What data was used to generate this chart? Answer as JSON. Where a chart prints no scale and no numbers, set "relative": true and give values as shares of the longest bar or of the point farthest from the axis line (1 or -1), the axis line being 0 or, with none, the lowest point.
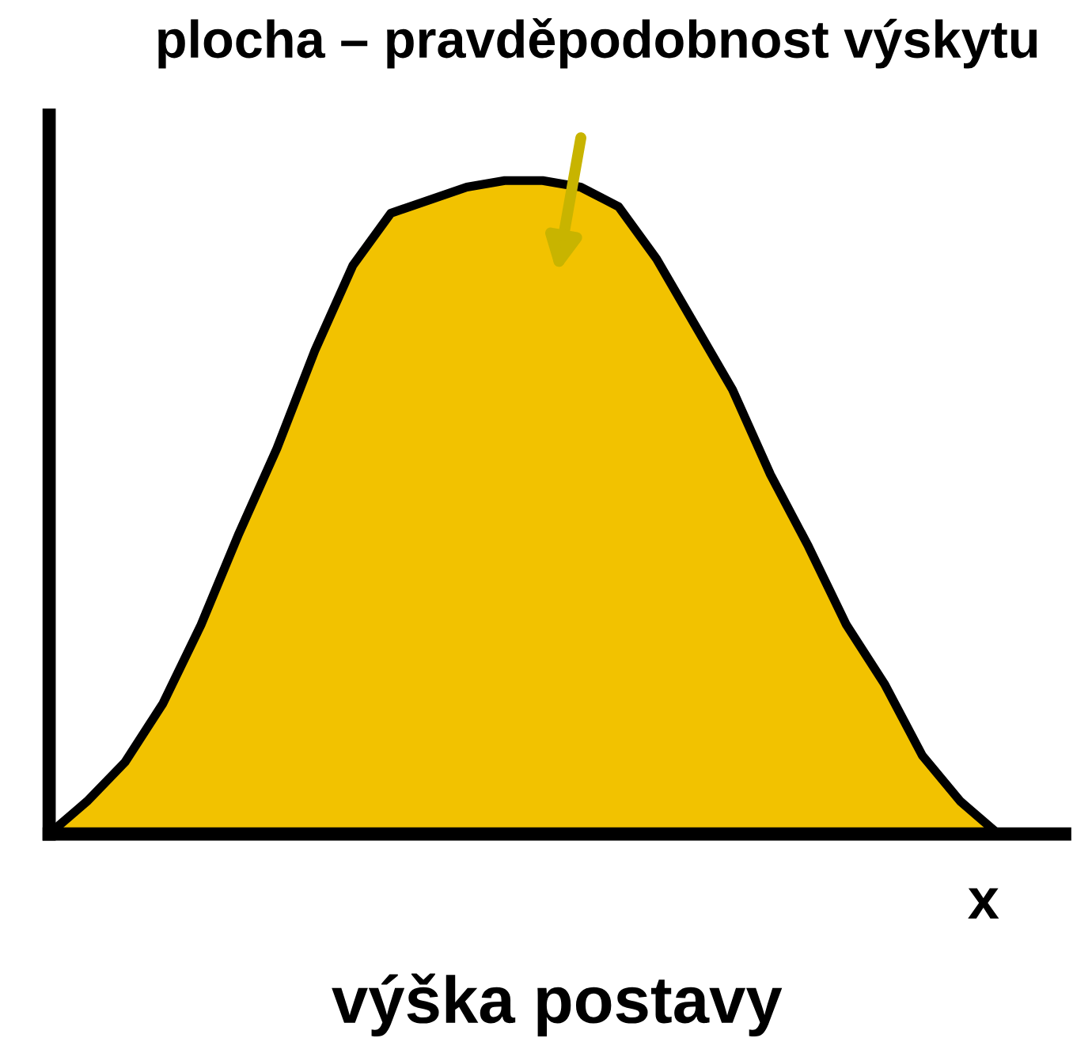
{
  "chart_data": {
    "type": "area",
    "relative": true,
    "color": "#f2c200",
    "categories": [
      null,
      null,
      null,
      null,
      null,
      null,
      null,
      null,
      null,
      null,
      null,
      null,
      null,
      null,
      null,
      null,
      null,
      null,
      null,
      null,
      null,
      null,
      null,
      null,
      null,
      null
    ],
    "values": [
      0,
      0.05,
      0.11,
      0.2,
      0.32,
      0.46,
      0.59,
      0.74,
      0.87,
      0.95,
      0.97,
      0.99,
      1.0,
      1.0,
      0.99,
      0.96,
      0.88,
      0.78,
      0.68,
      0.55,
      0.44,
      0.32,
      0.23,
      0.12,
      0.05,
      0
    ],
    "xlabel": "výška postavy",
    "annotations": [
      "plocha – pravděpodobnost výskytu",
      "x"
    ],
    "grid": false,
    "legend": false
  }
}
